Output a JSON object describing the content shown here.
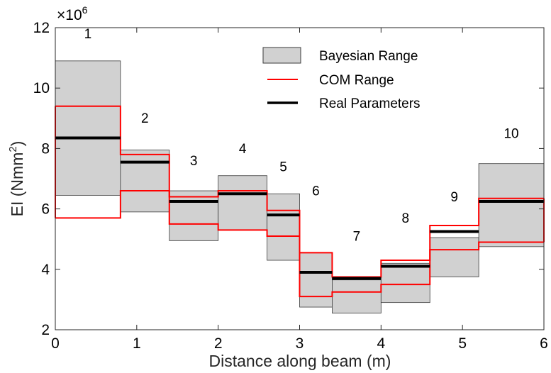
{
  "chart_data": {
    "type": "line",
    "title": "",
    "xlabel": "Distance along beam (m)",
    "ylabel": "EI (Nmm²)",
    "ylabel_parts": {
      "prefix": "EI (Nmm",
      "sup": "2",
      "suffix": ")"
    },
    "y_scale_label": {
      "base": "×10",
      "exponent": "6"
    },
    "xlim": [
      0,
      6
    ],
    "ylim": [
      2,
      12
    ],
    "x_ticks": [
      0,
      1,
      2,
      3,
      4,
      5,
      6
    ],
    "y_ticks": [
      2,
      4,
      6,
      8,
      10,
      12
    ],
    "x_tick_labels": [
      "0",
      "1",
      "2",
      "3",
      "4",
      "5",
      "6"
    ],
    "y_tick_labels": [
      "2",
      "4",
      "6",
      "8",
      "10",
      "12"
    ],
    "unit": "×10^6 Nmm²",
    "segment_edges": [
      0,
      0.8,
      1.4,
      2.0,
      2.6,
      3.0,
      3.4,
      4.0,
      4.6,
      5.2,
      6.0
    ],
    "segment_labels": [
      "1",
      "2",
      "3",
      "4",
      "5",
      "6",
      "7",
      "8",
      "9",
      "10"
    ],
    "segment_label_y": [
      11.65,
      8.85,
      7.45,
      7.85,
      7.25,
      6.45,
      4.95,
      5.55,
      6.25,
      8.35
    ],
    "series": [
      {
        "name": "Bayesian Range",
        "kind": "band",
        "lower": [
          6.45,
          5.9,
          4.95,
          5.3,
          4.3,
          2.75,
          2.55,
          2.9,
          3.75,
          4.75
        ],
        "upper": [
          10.9,
          7.95,
          6.6,
          7.1,
          6.5,
          4.55,
          3.65,
          4.2,
          5.05,
          7.5
        ]
      },
      {
        "name": "COM Range",
        "kind": "bounds",
        "lower": [
          5.7,
          6.6,
          5.5,
          5.3,
          5.1,
          3.1,
          3.25,
          3.5,
          4.65,
          4.9
        ],
        "upper": [
          9.4,
          7.8,
          6.4,
          6.6,
          5.95,
          4.55,
          3.75,
          4.3,
          5.45,
          6.35
        ]
      },
      {
        "name": "Real Parameters",
        "kind": "steps",
        "values": [
          8.35,
          7.55,
          6.25,
          6.5,
          5.8,
          3.9,
          3.7,
          4.1,
          5.25,
          6.25
        ]
      }
    ],
    "legend": {
      "position": "top-right",
      "entries": [
        "Bayesian Range",
        "COM Range",
        "Real Parameters"
      ]
    },
    "grid": false
  },
  "colors": {
    "band_fill": "#d1d1d1",
    "band_edge": "#3a3a3a",
    "com": "#ff0000",
    "real": "#000000",
    "axes": "#262626"
  }
}
